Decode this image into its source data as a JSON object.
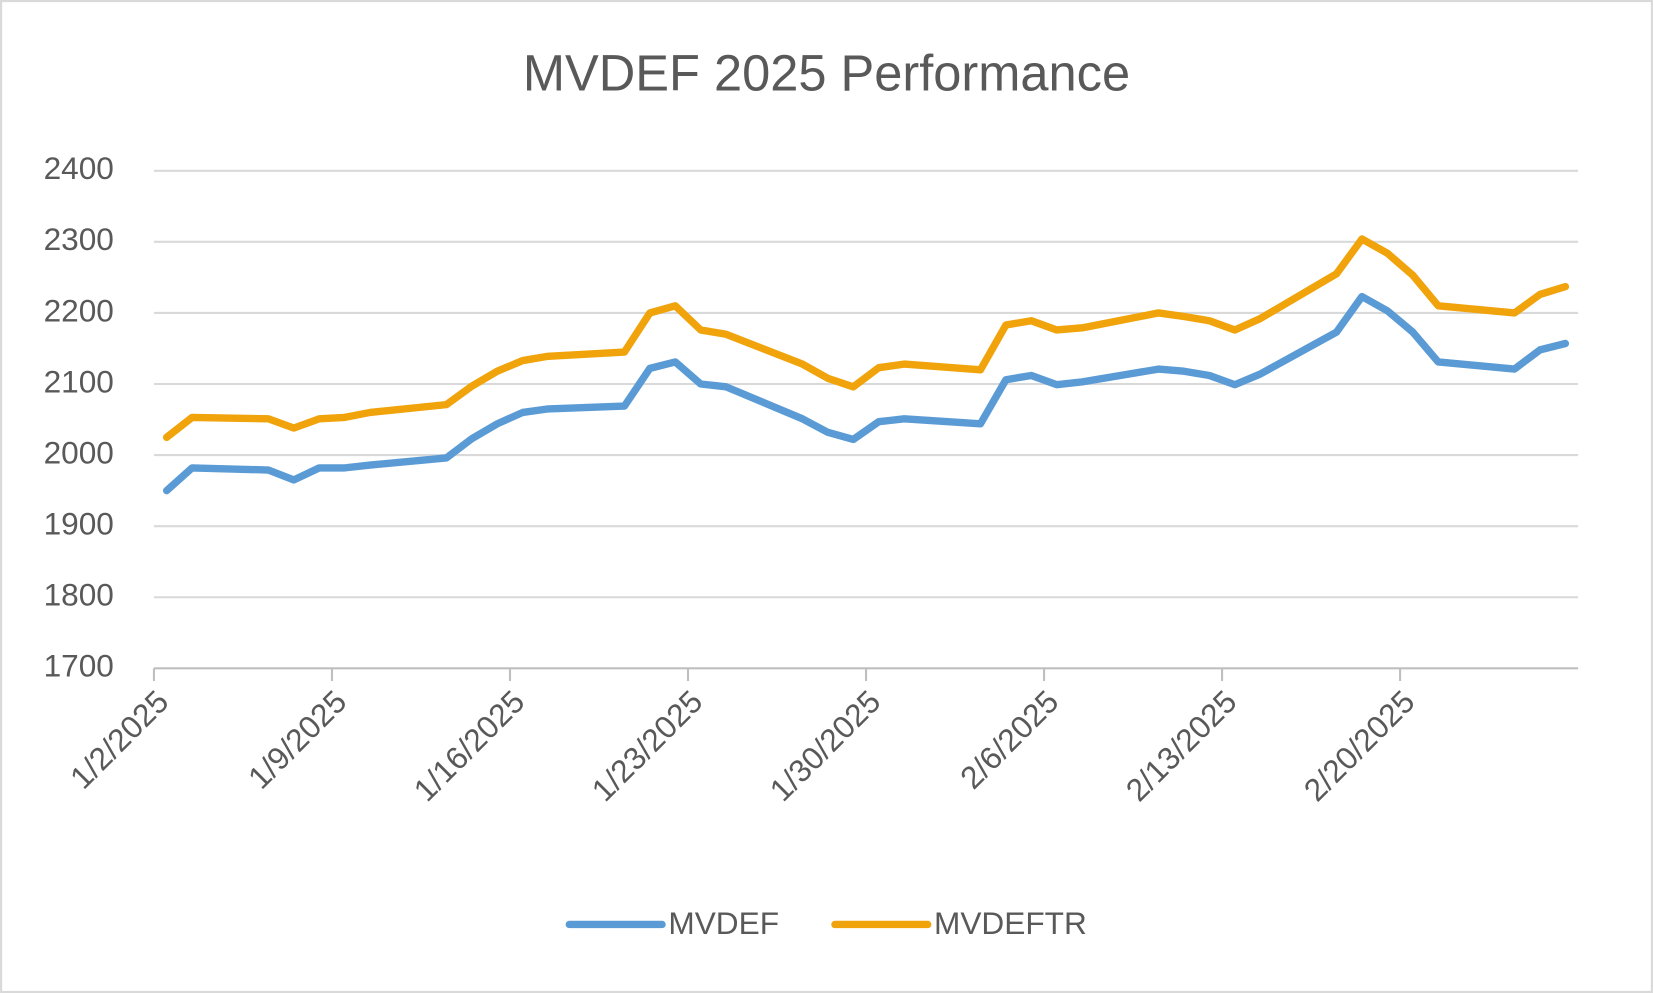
{
  "chart_data": {
    "type": "line",
    "title": "MVDEF 2025 Performance",
    "x": [
      "1/2/2025",
      "1/3/2025",
      "1/6/2025",
      "1/7/2025",
      "1/8/2025",
      "1/9/2025",
      "1/10/2025",
      "1/13/2025",
      "1/14/2025",
      "1/15/2025",
      "1/16/2025",
      "1/17/2025",
      "1/20/2025",
      "1/21/2025",
      "1/22/2025",
      "1/23/2025",
      "1/24/2025",
      "1/27/2025",
      "1/28/2025",
      "1/29/2025",
      "1/30/2025",
      "1/31/2025",
      "2/3/2025",
      "2/4/2025",
      "2/5/2025",
      "2/6/2025",
      "2/7/2025",
      "2/10/2025",
      "2/11/2025",
      "2/12/2025",
      "2/13/2025",
      "2/14/2025",
      "2/17/2025",
      "2/18/2025",
      "2/19/2025",
      "2/20/2025",
      "2/21/2025",
      "2/24/2025",
      "2/25/2025",
      "2/26/2025"
    ],
    "series": [
      {
        "name": "MVDEF",
        "color": "#5b9bd5",
        "values": [
          1950,
          1982,
          1979,
          1965,
          1982,
          1982,
          1986,
          1996,
          2023,
          2044,
          2060,
          2065,
          2069,
          2122,
          2131,
          2100,
          2096,
          2051,
          2032,
          2022,
          2047,
          2051,
          2044,
          2106,
          2112,
          2099,
          2103,
          2121,
          2118,
          2112,
          2099,
          2114,
          2173,
          2223,
          2203,
          2173,
          2131,
          2121,
          2148,
          2157
        ]
      },
      {
        "name": "MVDEFTR",
        "color": "#f0a30a",
        "values": [
          2025,
          2053,
          2051,
          2038,
          2051,
          2053,
          2060,
          2071,
          2097,
          2118,
          2133,
          2139,
          2145,
          2200,
          2210,
          2176,
          2170,
          2128,
          2108,
          2096,
          2123,
          2128,
          2120,
          2183,
          2189,
          2176,
          2179,
          2200,
          2195,
          2189,
          2176,
          2192,
          2255,
          2304,
          2284,
          2253,
          2210,
          2200,
          2226,
          2237
        ]
      }
    ],
    "xlim": [
      "1/2/2025",
      "2/26/2025"
    ],
    "xticks": [
      "1/2/2025",
      "1/9/2025",
      "1/16/2025",
      "1/23/2025",
      "1/30/2025",
      "2/6/2025",
      "2/13/2025",
      "2/20/2025"
    ],
    "ylim": [
      1700,
      2400
    ],
    "yticks": [
      1700,
      1800,
      1900,
      2000,
      2100,
      2200,
      2300,
      2400
    ],
    "grid": true,
    "legend": "bottom"
  }
}
